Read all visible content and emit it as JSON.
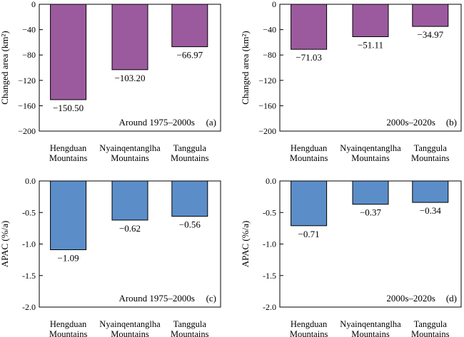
{
  "chart_data": [
    {
      "type": "bar",
      "panel_label": "(a)",
      "annotation": "Around 1975–2000s",
      "categories": [
        [
          "Hengduan",
          "Mountains"
        ],
        [
          "Nyainqentanglha",
          "Mountains"
        ],
        [
          "Tanggula",
          "Mountains"
        ]
      ],
      "values": [
        -150.5,
        -103.2,
        -66.97
      ],
      "value_labels": [
        "−150.50",
        "−103.20",
        "−66.97"
      ],
      "ylabel": "Changed area (km²)",
      "ylim": [
        -200,
        0
      ],
      "yticks": [
        0,
        -40,
        -80,
        -120,
        -160,
        -200
      ],
      "ytick_labels": [
        "0",
        "−40",
        "−80",
        "−120",
        "−160",
        "−200"
      ],
      "color": "#9b5a9e"
    },
    {
      "type": "bar",
      "panel_label": "(b)",
      "annotation": "2000s–2020s",
      "categories": [
        [
          "Hengduan",
          "Mountains"
        ],
        [
          "Nyainqentanglha",
          "Mountains"
        ],
        [
          "Tanggula",
          "Mountains"
        ]
      ],
      "values": [
        -71.03,
        -51.11,
        -34.97
      ],
      "value_labels": [
        "−71.03",
        "−51.11",
        "−34.97"
      ],
      "ylabel": "Changed area (km²)",
      "ylim": [
        -200,
        0
      ],
      "yticks": [
        0,
        -40,
        -80,
        -120,
        -160,
        -200
      ],
      "ytick_labels": [
        "0",
        "−40",
        "−80",
        "−120",
        "−160",
        "−200"
      ],
      "color": "#9b5a9e"
    },
    {
      "type": "bar",
      "panel_label": "(c)",
      "annotation": "Around 1975–2000s",
      "categories": [
        [
          "Hengduan",
          "Mountains"
        ],
        [
          "Nyainqentanglha",
          "Mountains"
        ],
        [
          "Tanggula",
          "Mountains"
        ]
      ],
      "values": [
        -1.09,
        -0.62,
        -0.56
      ],
      "value_labels": [
        "−1.09",
        "−0.62",
        "−0.56"
      ],
      "ylabel": "APAC (%/a)",
      "ylim": [
        -2.0,
        0
      ],
      "yticks": [
        0,
        -0.5,
        -1.0,
        -1.5,
        -2.0
      ],
      "ytick_labels": [
        "0.0",
        "-0.5",
        "-1.0",
        "-1.5",
        "-2.0"
      ],
      "color": "#5b8ec8"
    },
    {
      "type": "bar",
      "panel_label": "(d)",
      "annotation": "2000s–2020s",
      "categories": [
        [
          "Hengduan",
          "Mountains"
        ],
        [
          "Nyainqentanglha",
          "Mountains"
        ],
        [
          "Tanggula",
          "Mountains"
        ]
      ],
      "values": [
        -0.71,
        -0.37,
        -0.34
      ],
      "value_labels": [
        "−0.71",
        "−0.37",
        "−0.34"
      ],
      "ylabel": "APAC (%/a)",
      "ylim": [
        -2.0,
        0
      ],
      "yticks": [
        0,
        -0.5,
        -1.0,
        -1.5,
        -2.0
      ],
      "ytick_labels": [
        "0.0",
        "-0.5",
        "-1.0",
        "-1.5",
        "-2.0"
      ],
      "color": "#5b8ec8"
    }
  ]
}
